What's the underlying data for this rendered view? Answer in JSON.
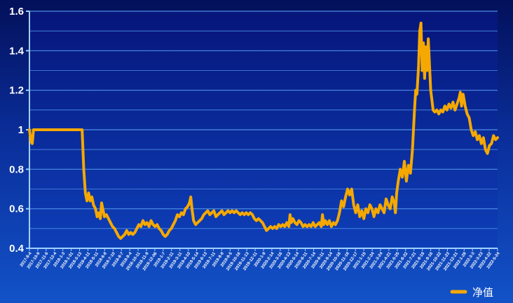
{
  "chart_data": {
    "type": "line",
    "title": "",
    "xlabel": "",
    "ylabel": "",
    "ylim": [
      0.4,
      1.6
    ],
    "yticks": [
      "0.4",
      "0.6",
      "0.8",
      "1",
      "1.2",
      "1.4",
      "1.6"
    ],
    "grid": true,
    "legend_position": "bottom-right",
    "x_tick_labels": [
      "2017-8-4",
      "2017-10-9",
      "2017-11-6",
      "2017-12-4",
      "2018-1-3",
      "2018-1-31",
      "2018-3-13",
      "2018-4-11",
      "2018-5-11",
      "2018-6-8",
      "2018-7-10",
      "2018-8-7",
      "2018-9-4",
      "2018-10-11",
      "2018-11-8",
      "2018-12-06",
      "2019-1-7",
      "2019-2-11",
      "2019-3-11",
      "2019-4-10",
      "2019-5-14",
      "2019-6-13",
      "2019-7-11",
      "2019-8-8",
      "2019-9-5",
      "2019-10-16",
      "2019-11-13",
      "2019-12-11",
      "2020-1-9",
      "2020-2-14",
      "2020-3-16",
      "2020-4-13",
      "2020-5-14",
      "2020-6-11",
      "2020-7-14",
      "2020-8-11",
      "2020-9-14",
      "2020-10-16",
      "2020-11-18",
      "2020-12-17",
      "2021-1-15",
      "2021-2-24",
      "2021-3-24",
      "2021-4-21",
      "2021-5-25",
      "2021-6-22",
      "2021-7-21",
      "2021-8-18",
      "2021-9-16",
      "2021-10-22",
      "2021-11-23",
      "2021-12-21",
      "2022-1-28",
      "2022-3-3",
      "2022-3-23",
      "2022-4-22",
      "2022-5-24"
    ],
    "series": [
      {
        "name": "净值",
        "color": "#f5a800",
        "points": [
          [
            0,
            1.0
          ],
          [
            0.4,
            0.94
          ],
          [
            0.7,
            0.93
          ],
          [
            1,
            1.0
          ],
          [
            4,
            1.0
          ],
          [
            8,
            1.0
          ],
          [
            11,
            1.0
          ],
          [
            13,
            1.0
          ],
          [
            13.4,
            0.8
          ],
          [
            13.8,
            0.68
          ],
          [
            14.2,
            0.64
          ],
          [
            14.6,
            0.68
          ],
          [
            15,
            0.64
          ],
          [
            15.4,
            0.66
          ],
          [
            15.8,
            0.62
          ],
          [
            16.3,
            0.6
          ],
          [
            16.7,
            0.56
          ],
          [
            17.1,
            0.58
          ],
          [
            17.5,
            0.55
          ],
          [
            17.8,
            0.63
          ],
          [
            18.1,
            0.6
          ],
          [
            18.5,
            0.56
          ],
          [
            19,
            0.57
          ],
          [
            19.5,
            0.55
          ],
          [
            20,
            0.53
          ],
          [
            20.5,
            0.51
          ],
          [
            21,
            0.5
          ],
          [
            21.5,
            0.48
          ],
          [
            22,
            0.46
          ],
          [
            22.5,
            0.45
          ],
          [
            23,
            0.46
          ],
          [
            23.5,
            0.47
          ],
          [
            24,
            0.49
          ],
          [
            24.5,
            0.47
          ],
          [
            25,
            0.48
          ],
          [
            25.5,
            0.47
          ],
          [
            26,
            0.48
          ],
          [
            26.5,
            0.5
          ],
          [
            27,
            0.52
          ],
          [
            27.5,
            0.51
          ],
          [
            28,
            0.54
          ],
          [
            28.5,
            0.52
          ],
          [
            29,
            0.53
          ],
          [
            29.5,
            0.51
          ],
          [
            30,
            0.54
          ],
          [
            30.5,
            0.52
          ],
          [
            31,
            0.51
          ],
          [
            31.5,
            0.52
          ],
          [
            32,
            0.5
          ],
          [
            32.5,
            0.49
          ],
          [
            33,
            0.47
          ],
          [
            33.5,
            0.46
          ],
          [
            34,
            0.47
          ],
          [
            34.5,
            0.49
          ],
          [
            35,
            0.5
          ],
          [
            35.5,
            0.52
          ],
          [
            36,
            0.54
          ],
          [
            36.5,
            0.57
          ],
          [
            37,
            0.56
          ],
          [
            37.5,
            0.58
          ],
          [
            38,
            0.57
          ],
          [
            38.5,
            0.6
          ],
          [
            39,
            0.61
          ],
          [
            39.5,
            0.63
          ],
          [
            39.8,
            0.66
          ],
          [
            40.1,
            0.6
          ],
          [
            40.5,
            0.54
          ],
          [
            41,
            0.52
          ],
          [
            41.5,
            0.53
          ],
          [
            42,
            0.54
          ],
          [
            42.5,
            0.55
          ],
          [
            43,
            0.57
          ],
          [
            43.5,
            0.58
          ],
          [
            44,
            0.59
          ],
          [
            44.5,
            0.57
          ],
          [
            45,
            0.58
          ],
          [
            45.5,
            0.59
          ],
          [
            46,
            0.56
          ],
          [
            46.5,
            0.57
          ],
          [
            47,
            0.58
          ],
          [
            47.5,
            0.59
          ],
          [
            48,
            0.57
          ],
          [
            48.5,
            0.58
          ],
          [
            49,
            0.59
          ],
          [
            49.5,
            0.58
          ],
          [
            50,
            0.59
          ],
          [
            50.5,
            0.58
          ],
          [
            51,
            0.59
          ],
          [
            51.5,
            0.58
          ],
          [
            52,
            0.57
          ],
          [
            52.5,
            0.58
          ],
          [
            53,
            0.57
          ],
          [
            53.5,
            0.58
          ],
          [
            54,
            0.57
          ],
          [
            54.5,
            0.58
          ],
          [
            55,
            0.57
          ],
          [
            55.5,
            0.55
          ],
          [
            56,
            0.54
          ],
          [
            56.5,
            0.55
          ],
          [
            57,
            0.54
          ],
          [
            57.5,
            0.53
          ],
          [
            58,
            0.51
          ],
          [
            58.5,
            0.49
          ],
          [
            59,
            0.5
          ],
          [
            59.5,
            0.51
          ],
          [
            60,
            0.5
          ],
          [
            60.5,
            0.51
          ],
          [
            61,
            0.5
          ],
          [
            61.5,
            0.52
          ],
          [
            62,
            0.51
          ],
          [
            62.5,
            0.52
          ],
          [
            63,
            0.51
          ],
          [
            63.5,
            0.53
          ],
          [
            64,
            0.51
          ],
          [
            64.3,
            0.57
          ],
          [
            64.6,
            0.53
          ],
          [
            65,
            0.55
          ],
          [
            65.5,
            0.53
          ],
          [
            66,
            0.52
          ],
          [
            66.5,
            0.54
          ],
          [
            67,
            0.53
          ],
          [
            67.5,
            0.51
          ],
          [
            68,
            0.52
          ],
          [
            68.5,
            0.51
          ],
          [
            69,
            0.52
          ],
          [
            69.5,
            0.51
          ],
          [
            70,
            0.53
          ],
          [
            70.5,
            0.51
          ],
          [
            71,
            0.52
          ],
          [
            71.5,
            0.53
          ],
          [
            72,
            0.51
          ],
          [
            72.3,
            0.57
          ],
          [
            72.6,
            0.52
          ],
          [
            73,
            0.54
          ],
          [
            73.5,
            0.52
          ],
          [
            74,
            0.54
          ],
          [
            74.5,
            0.51
          ],
          [
            75,
            0.53
          ],
          [
            75.5,
            0.52
          ],
          [
            76,
            0.54
          ],
          [
            76.5,
            0.58
          ],
          [
            77,
            0.64
          ],
          [
            77.5,
            0.61
          ],
          [
            78,
            0.66
          ],
          [
            78.5,
            0.7
          ],
          [
            79,
            0.67
          ],
          [
            79.5,
            0.7
          ],
          [
            80,
            0.62
          ],
          [
            80.5,
            0.58
          ],
          [
            81,
            0.62
          ],
          [
            81.5,
            0.56
          ],
          [
            82,
            0.59
          ],
          [
            82.5,
            0.55
          ],
          [
            83,
            0.6
          ],
          [
            83.5,
            0.58
          ],
          [
            84,
            0.62
          ],
          [
            84.5,
            0.6
          ],
          [
            85,
            0.56
          ],
          [
            85.5,
            0.6
          ],
          [
            86,
            0.58
          ],
          [
            86.5,
            0.62
          ],
          [
            87,
            0.6
          ],
          [
            87.5,
            0.58
          ],
          [
            88,
            0.65
          ],
          [
            88.5,
            0.62
          ],
          [
            89,
            0.6
          ],
          [
            89.5,
            0.66
          ],
          [
            90,
            0.63
          ],
          [
            90.3,
            0.58
          ],
          [
            90.6,
            0.68
          ],
          [
            91,
            0.74
          ],
          [
            91.5,
            0.8
          ],
          [
            92,
            0.76
          ],
          [
            92.5,
            0.84
          ],
          [
            93,
            0.74
          ],
          [
            93.5,
            0.82
          ],
          [
            94,
            0.78
          ],
          [
            94.5,
            0.9
          ],
          [
            95,
            1.1
          ],
          [
            95.3,
            1.2
          ],
          [
            95.6,
            1.18
          ],
          [
            96,
            1.32
          ],
          [
            96.3,
            1.5
          ],
          [
            96.6,
            1.54
          ],
          [
            96.9,
            1.3
          ],
          [
            97.2,
            1.44
          ],
          [
            97.5,
            1.26
          ],
          [
            97.8,
            1.42
          ],
          [
            98.1,
            1.3
          ],
          [
            98.4,
            1.46
          ],
          [
            98.7,
            1.33
          ],
          [
            99,
            1.2
          ],
          [
            99.3,
            1.15
          ],
          [
            99.6,
            1.1
          ],
          [
            100,
            1.09
          ],
          [
            100.5,
            1.1
          ],
          [
            101,
            1.08
          ],
          [
            101.5,
            1.1
          ],
          [
            102,
            1.09
          ],
          [
            102.5,
            1.12
          ],
          [
            103,
            1.1
          ],
          [
            103.5,
            1.13
          ],
          [
            104,
            1.11
          ],
          [
            104.5,
            1.14
          ],
          [
            105,
            1.1
          ],
          [
            105.5,
            1.13
          ],
          [
            106,
            1.16
          ],
          [
            106.3,
            1.19
          ],
          [
            106.6,
            1.12
          ],
          [
            107,
            1.18
          ],
          [
            107.5,
            1.12
          ],
          [
            108,
            1.08
          ],
          [
            108.5,
            1.06
          ],
          [
            109,
            1.0
          ],
          [
            109.5,
            0.97
          ],
          [
            110,
            0.99
          ],
          [
            110.5,
            0.95
          ],
          [
            111,
            0.97
          ],
          [
            111.5,
            0.93
          ],
          [
            112,
            0.96
          ],
          [
            112.5,
            0.9
          ],
          [
            113,
            0.88
          ],
          [
            113.5,
            0.92
          ],
          [
            114,
            0.93
          ],
          [
            114.5,
            0.97
          ],
          [
            115,
            0.95
          ],
          [
            115.5,
            0.96
          ]
        ]
      }
    ],
    "xlim": [
      0,
      115.5
    ]
  }
}
